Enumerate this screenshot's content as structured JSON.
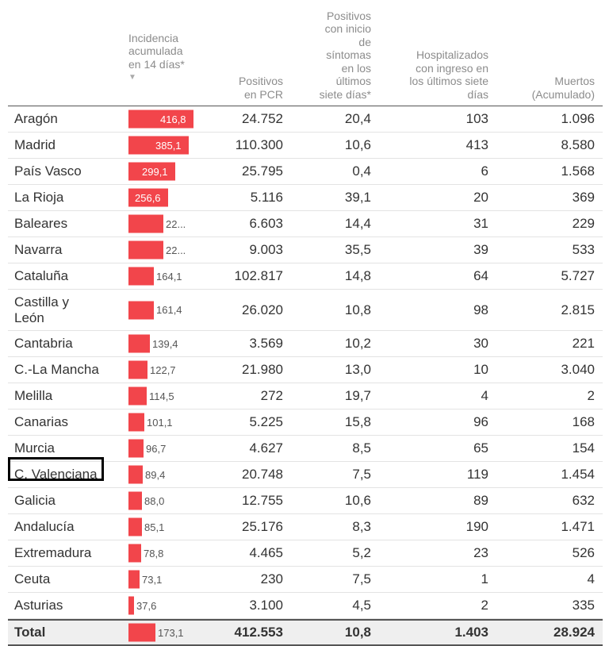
{
  "headers": {
    "incidencia": "Incidencia\nacumulada\nen 14 días*",
    "incidencia_arrow": "▼",
    "pcr": "Positivos\nen PCR",
    "positivos_sintomas": "Positivos\ncon inicio\nde\nsíntomas\nen los\núltimos\nsiete días*",
    "hospitalizados": "Hospitalizados\ncon ingreso en\nlos últimos siete\ndías",
    "muertos": "Muertos\n(Acumulado)"
  },
  "bar_max": 416.8,
  "bar_color": "#f2454b",
  "rows": [
    {
      "region": "Aragón",
      "incidencia": 416.8,
      "incidencia_label": "416,8",
      "pcr": "24.752",
      "sintomas": "20,4",
      "hosp": "103",
      "muertos": "1.096"
    },
    {
      "region": "Madrid",
      "incidencia": 385.1,
      "incidencia_label": "385,1",
      "pcr": "110.300",
      "sintomas": "10,6",
      "hosp": "413",
      "muertos": "8.580"
    },
    {
      "region": "País Vasco",
      "incidencia": 299.1,
      "incidencia_label": "299,1",
      "pcr": "25.795",
      "sintomas": "0,4",
      "hosp": "6",
      "muertos": "1.568"
    },
    {
      "region": "La Rioja",
      "incidencia": 256.6,
      "incidencia_label": "256,6",
      "pcr": "5.116",
      "sintomas": "39,1",
      "hosp": "20",
      "muertos": "369"
    },
    {
      "region": "Baleares",
      "incidencia": 225.0,
      "incidencia_label": "22...",
      "pcr": "6.603",
      "sintomas": "14,4",
      "hosp": "31",
      "muertos": "229"
    },
    {
      "region": "Navarra",
      "incidencia": 224.0,
      "incidencia_label": "22...",
      "pcr": "9.003",
      "sintomas": "35,5",
      "hosp": "39",
      "muertos": "533"
    },
    {
      "region": "Cataluña",
      "incidencia": 164.1,
      "incidencia_label": "164,1",
      "pcr": "102.817",
      "sintomas": "14,8",
      "hosp": "64",
      "muertos": "5.727"
    },
    {
      "region": "Castilla y León",
      "incidencia": 161.4,
      "incidencia_label": "161,4",
      "pcr": "26.020",
      "sintomas": "10,8",
      "hosp": "98",
      "muertos": "2.815",
      "tall": true
    },
    {
      "region": "Cantabria",
      "incidencia": 139.4,
      "incidencia_label": "139,4",
      "pcr": "3.569",
      "sintomas": "10,2",
      "hosp": "30",
      "muertos": "221"
    },
    {
      "region": "C.-La Mancha",
      "incidencia": 122.7,
      "incidencia_label": "122,7",
      "pcr": "21.980",
      "sintomas": "13,0",
      "hosp": "10",
      "muertos": "3.040"
    },
    {
      "region": "Melilla",
      "incidencia": 114.5,
      "incidencia_label": "114,5",
      "pcr": "272",
      "sintomas": "19,7",
      "hosp": "4",
      "muertos": "2"
    },
    {
      "region": "Canarias",
      "incidencia": 101.1,
      "incidencia_label": "101,1",
      "pcr": "5.225",
      "sintomas": "15,8",
      "hosp": "96",
      "muertos": "168"
    },
    {
      "region": "Murcia",
      "incidencia": 96.7,
      "incidencia_label": "96,7",
      "pcr": "4.627",
      "sintomas": "8,5",
      "hosp": "65",
      "muertos": "154"
    },
    {
      "region": "C. Valenciana",
      "incidencia": 89.4,
      "incidencia_label": "89,4",
      "pcr": "20.748",
      "sintomas": "7,5",
      "hosp": "119",
      "muertos": "1.454"
    },
    {
      "region": "Galicia",
      "incidencia": 88.0,
      "incidencia_label": "88,0",
      "pcr": "12.755",
      "sintomas": "10,6",
      "hosp": "89",
      "muertos": "632"
    },
    {
      "region": "Andalucía",
      "incidencia": 85.1,
      "incidencia_label": "85,1",
      "pcr": "25.176",
      "sintomas": "8,3",
      "hosp": "190",
      "muertos": "1.471"
    },
    {
      "region": "Extremadura",
      "incidencia": 78.8,
      "incidencia_label": "78,8",
      "pcr": "4.465",
      "sintomas": "5,2",
      "hosp": "23",
      "muertos": "526"
    },
    {
      "region": "Ceuta",
      "incidencia": 73.1,
      "incidencia_label": "73,1",
      "pcr": "230",
      "sintomas": "7,5",
      "hosp": "1",
      "muertos": "4"
    },
    {
      "region": "Asturias",
      "incidencia": 37.6,
      "incidencia_label": "37,6",
      "pcr": "3.100",
      "sintomas": "4,5",
      "hosp": "2",
      "muertos": "335"
    }
  ],
  "total": {
    "region": "Total",
    "incidencia": 173.1,
    "incidencia_label": "173,1",
    "pcr": "412.553",
    "sintomas": "10,8",
    "hosp": "1.403",
    "muertos": "28.924"
  },
  "highlighted_region": "C. Valenciana"
}
